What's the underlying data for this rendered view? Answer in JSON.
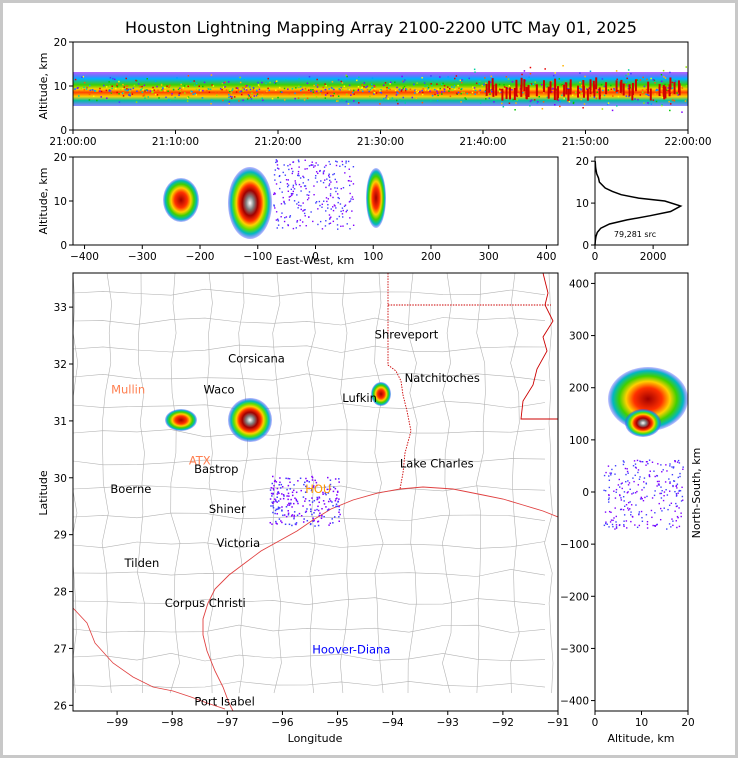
{
  "title": "Houston Lightning Mapping Array 2100-2200 UTC May 01, 2025",
  "colors": {
    "scale": [
      "#7f00ff",
      "#3f3fff",
      "#00a0ff",
      "#00d2a0",
      "#00c800",
      "#96e600",
      "#ffff00",
      "#ffb400",
      "#ff5a00",
      "#e60000",
      "#a00000",
      "#505050",
      "#c8c8c8",
      "#ffffff"
    ],
    "state_lines": "#cc0000",
    "county_lines": "#b4b4b4",
    "coast": "#e04040"
  },
  "chart_data": [
    {
      "id": "time-altitude",
      "type": "heatmap",
      "ylabel": "Altitude, km",
      "ylim": [
        0,
        20
      ],
      "yticks": [
        "0",
        "10",
        "20"
      ],
      "xticks": [
        "21:00:00",
        "21:10:00",
        "21:20:00",
        "21:30:00",
        "21:40:00",
        "21:50:00",
        "22:00:00"
      ],
      "xlim_minutes": [
        0,
        60
      ]
    },
    {
      "id": "eastwest-altitude",
      "type": "heatmap",
      "xlabel": "East-West, km",
      "ylabel": "Altitude, km",
      "xlim": [
        -420,
        420
      ],
      "ylim": [
        0,
        20
      ],
      "xticks": [
        "−400",
        "−300",
        "−200",
        "−100",
        "0",
        "100",
        "200",
        "300",
        "400"
      ],
      "yticks": [
        "0",
        "10",
        "20"
      ]
    },
    {
      "id": "altitude-histogram",
      "type": "line",
      "xlim": [
        0,
        3200
      ],
      "ylim": [
        0,
        21
      ],
      "xticks": [
        "0",
        "2000"
      ],
      "yticks": [
        "0",
        "10",
        "20"
      ],
      "annotation": "79,281 src",
      "x": [
        0,
        10,
        30,
        80,
        200,
        500,
        1100,
        1900,
        2600,
        2950,
        2400,
        1500,
        900,
        600,
        350,
        150,
        120,
        60,
        20,
        8
      ],
      "y": [
        0,
        1,
        2,
        3,
        4,
        5,
        6,
        7,
        8,
        9.3,
        10.5,
        11.2,
        12,
        12.8,
        13.6,
        15,
        16,
        17,
        18.5,
        20
      ]
    },
    {
      "id": "map",
      "type": "scatter",
      "xlabel": "Longitude",
      "ylabel": "Latitude",
      "xlim": [
        -99.8,
        -91
      ],
      "ylim": [
        25.9,
        33.6
      ],
      "xticks": [
        "−99",
        "−98",
        "−97",
        "−96",
        "−95",
        "−94",
        "−93",
        "−92",
        "−91"
      ],
      "yticks": [
        "26",
        "27",
        "28",
        "29",
        "30",
        "31",
        "32",
        "33"
      ],
      "cities": [
        {
          "name": "Shreveport",
          "lon": -93.75,
          "lat": 32.52,
          "color": "#000000"
        },
        {
          "name": "Corsicana",
          "lon": -96.47,
          "lat": 32.1,
          "color": "#000000"
        },
        {
          "name": "Mullin",
          "lon": -98.8,
          "lat": 31.55,
          "color": "#ff7f50"
        },
        {
          "name": "Waco",
          "lon": -97.15,
          "lat": 31.55,
          "color": "#000000"
        },
        {
          "name": "Natchitoches",
          "lon": -93.1,
          "lat": 31.75,
          "color": "#000000"
        },
        {
          "name": "Lufkin",
          "lon": -94.6,
          "lat": 31.4,
          "color": "#000000"
        },
        {
          "name": "ATX",
          "lon": -97.5,
          "lat": 30.3,
          "color": "#ff7f50"
        },
        {
          "name": "Bastrop",
          "lon": -97.2,
          "lat": 30.15,
          "color": "#000000"
        },
        {
          "name": "Lake Charles",
          "lon": -93.2,
          "lat": 30.25,
          "color": "#000000"
        },
        {
          "name": "Boerne",
          "lon": -98.75,
          "lat": 29.8,
          "color": "#000000"
        },
        {
          "name": "HOU",
          "lon": -95.35,
          "lat": 29.8,
          "color": "#ff9900"
        },
        {
          "name": "Shiner",
          "lon": -97.0,
          "lat": 29.45,
          "color": "#000000"
        },
        {
          "name": "Victoria",
          "lon": -96.8,
          "lat": 28.85,
          "color": "#000000"
        },
        {
          "name": "Tilden",
          "lon": -98.55,
          "lat": 28.5,
          "color": "#000000"
        },
        {
          "name": "Corpus Christi",
          "lon": -97.4,
          "lat": 27.8,
          "color": "#000000"
        },
        {
          "name": "Hoover-Diana",
          "lon": -94.75,
          "lat": 26.98,
          "color": "#0000ff"
        },
        {
          "name": "Port Isabel",
          "lon": -97.05,
          "lat": 26.07,
          "color": "#000000"
        }
      ]
    },
    {
      "id": "altitude-northsouth",
      "type": "heatmap",
      "xlabel": "Altitude, km",
      "ylabel": "North-South, km",
      "xlim": [
        0,
        20
      ],
      "ylim": [
        -420,
        420
      ],
      "xticks": [
        "0",
        "10",
        "20"
      ],
      "yticks": [
        "−400",
        "−300",
        "−200",
        "−100",
        "0",
        "100",
        "200",
        "300",
        "400"
      ]
    }
  ]
}
